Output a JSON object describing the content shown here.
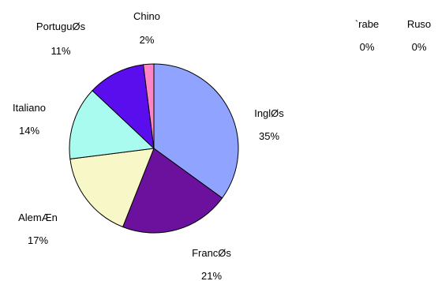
{
  "chart_data": {
    "type": "pie",
    "title": "",
    "slices": [
      {
        "label": "InglØs",
        "value": 35,
        "value_label": "35%",
        "color": "#8fa3ff"
      },
      {
        "label": "FrancØs",
        "value": 21,
        "value_label": "21%",
        "color": "#6b119e"
      },
      {
        "label": "AlemÆn",
        "value": 17,
        "value_label": "17%",
        "color": "#f7f7c7"
      },
      {
        "label": "Italiano",
        "value": 14,
        "value_label": "14%",
        "color": "#a9fbef"
      },
      {
        "label": "PortuguØs",
        "value": 11,
        "value_label": "11%",
        "color": "#5b0eed"
      },
      {
        "label": "Chino",
        "value": 2,
        "value_label": "2%",
        "color": "#ff85c6"
      },
      {
        "label": "`rabe",
        "value": 0,
        "value_label": "0%",
        "color": "#000000"
      },
      {
        "label": "Ruso",
        "value": 0,
        "value_label": "0%",
        "color": "#000000"
      }
    ]
  }
}
